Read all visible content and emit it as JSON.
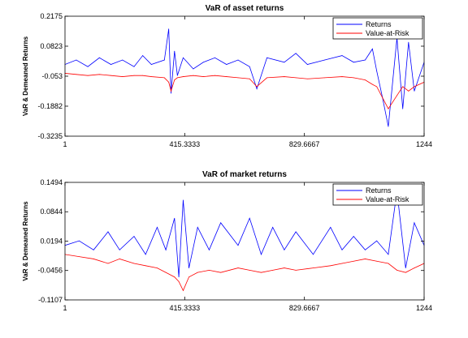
{
  "chart_data": [
    {
      "type": "line",
      "title": "VaR of asset returns",
      "ylabel": "VaR & Demeaned Returns",
      "xlabel": "",
      "xlim": [
        1,
        1244
      ],
      "ylim": [
        -0.3235,
        0.2175
      ],
      "x_ticks": [
        1,
        415.3333,
        829.6667,
        1244
      ],
      "x_tick_labels": [
        "1",
        "415.3333",
        "829.6667",
        "1244"
      ],
      "y_ticks": [
        0.2175,
        0.0823,
        -0.053,
        -0.1882,
        -0.3235
      ],
      "y_tick_labels": [
        "0.2175",
        "0.0823",
        "-0.053",
        "-0.1882",
        "-0.3235"
      ],
      "legend_position": "top-right",
      "grid": false,
      "series": [
        {
          "name": "Returns",
          "color": "#0000ff",
          "x": [
            1,
            40,
            80,
            120,
            160,
            200,
            240,
            270,
            300,
            345,
            360,
            368,
            380,
            390,
            410,
            445,
            480,
            520,
            560,
            600,
            640,
            665,
            700,
            760,
            800,
            840,
            900,
            960,
            1000,
            1040,
            1065,
            1080,
            1100,
            1120,
            1150,
            1170,
            1190,
            1210,
            1244
          ],
          "values": [
            0.0,
            0.02,
            -0.01,
            0.03,
            0.0,
            0.02,
            -0.01,
            0.04,
            0.0,
            0.02,
            0.16,
            -0.13,
            0.06,
            -0.05,
            0.03,
            -0.02,
            0.01,
            0.03,
            0.0,
            0.02,
            -0.01,
            -0.11,
            0.03,
            0.01,
            0.05,
            0.0,
            0.02,
            0.04,
            0.01,
            0.02,
            0.07,
            -0.03,
            -0.15,
            -0.28,
            0.12,
            -0.2,
            0.1,
            -0.12,
            0.01
          ]
        },
        {
          "name": "Value-at-Risk",
          "color": "#ff0000",
          "x": [
            1,
            40,
            80,
            120,
            160,
            200,
            240,
            270,
            300,
            345,
            360,
            368,
            380,
            390,
            410,
            445,
            480,
            520,
            560,
            600,
            640,
            665,
            700,
            760,
            800,
            840,
            900,
            960,
            1000,
            1040,
            1065,
            1080,
            1100,
            1120,
            1150,
            1170,
            1190,
            1210,
            1244
          ],
          "values": [
            -0.04,
            -0.045,
            -0.05,
            -0.045,
            -0.05,
            -0.055,
            -0.05,
            -0.05,
            -0.055,
            -0.06,
            -0.08,
            -0.12,
            -0.07,
            -0.06,
            -0.055,
            -0.05,
            -0.055,
            -0.05,
            -0.055,
            -0.06,
            -0.065,
            -0.1,
            -0.06,
            -0.055,
            -0.06,
            -0.065,
            -0.06,
            -0.055,
            -0.06,
            -0.07,
            -0.09,
            -0.1,
            -0.15,
            -0.2,
            -0.14,
            -0.1,
            -0.12,
            -0.1,
            -0.08
          ]
        }
      ]
    },
    {
      "type": "line",
      "title": "VaR of market returns",
      "ylabel": "VaR & Demeaned Returns",
      "xlabel": "",
      "xlim": [
        1,
        1244
      ],
      "ylim": [
        -0.1107,
        0.1494
      ],
      "x_ticks": [
        1,
        415.3333,
        829.6667,
        1244
      ],
      "x_tick_labels": [
        "1",
        "415.3333",
        "829.6667",
        "1244"
      ],
      "y_ticks": [
        0.1494,
        0.0844,
        0.0194,
        -0.0456,
        -0.1107
      ],
      "y_tick_labels": [
        "0.1494",
        "0.0844",
        "0.0194",
        "-0.0456",
        "-0.1107"
      ],
      "legend_position": "top-right",
      "grid": false,
      "series": [
        {
          "name": "Returns",
          "color": "#0000ff",
          "x": [
            1,
            50,
            100,
            150,
            190,
            240,
            280,
            320,
            350,
            380,
            395,
            410,
            430,
            460,
            500,
            540,
            600,
            640,
            680,
            720,
            760,
            800,
            860,
            920,
            960,
            1000,
            1040,
            1080,
            1120,
            1150,
            1180,
            1210,
            1244
          ],
          "values": [
            0.01,
            0.02,
            0.0,
            0.04,
            0.0,
            0.03,
            -0.01,
            0.05,
            0.0,
            0.07,
            -0.06,
            0.11,
            -0.04,
            0.05,
            0.0,
            0.06,
            0.01,
            0.07,
            -0.01,
            0.05,
            0.0,
            0.04,
            -0.01,
            0.05,
            0.0,
            0.03,
            0.0,
            0.02,
            -0.01,
            0.13,
            -0.04,
            0.06,
            0.01
          ]
        },
        {
          "name": "Value-at-Risk",
          "color": "#ff0000",
          "x": [
            1,
            50,
            100,
            150,
            190,
            240,
            280,
            320,
            350,
            380,
            395,
            410,
            430,
            460,
            500,
            540,
            600,
            640,
            680,
            720,
            760,
            800,
            860,
            920,
            960,
            1000,
            1040,
            1080,
            1120,
            1150,
            1180,
            1210,
            1244
          ],
          "values": [
            -0.01,
            -0.015,
            -0.02,
            -0.03,
            -0.02,
            -0.03,
            -0.035,
            -0.04,
            -0.05,
            -0.06,
            -0.07,
            -0.09,
            -0.06,
            -0.05,
            -0.045,
            -0.05,
            -0.04,
            -0.045,
            -0.05,
            -0.045,
            -0.04,
            -0.045,
            -0.04,
            -0.035,
            -0.03,
            -0.025,
            -0.02,
            -0.025,
            -0.03,
            -0.045,
            -0.05,
            -0.04,
            -0.03
          ]
        }
      ]
    }
  ]
}
